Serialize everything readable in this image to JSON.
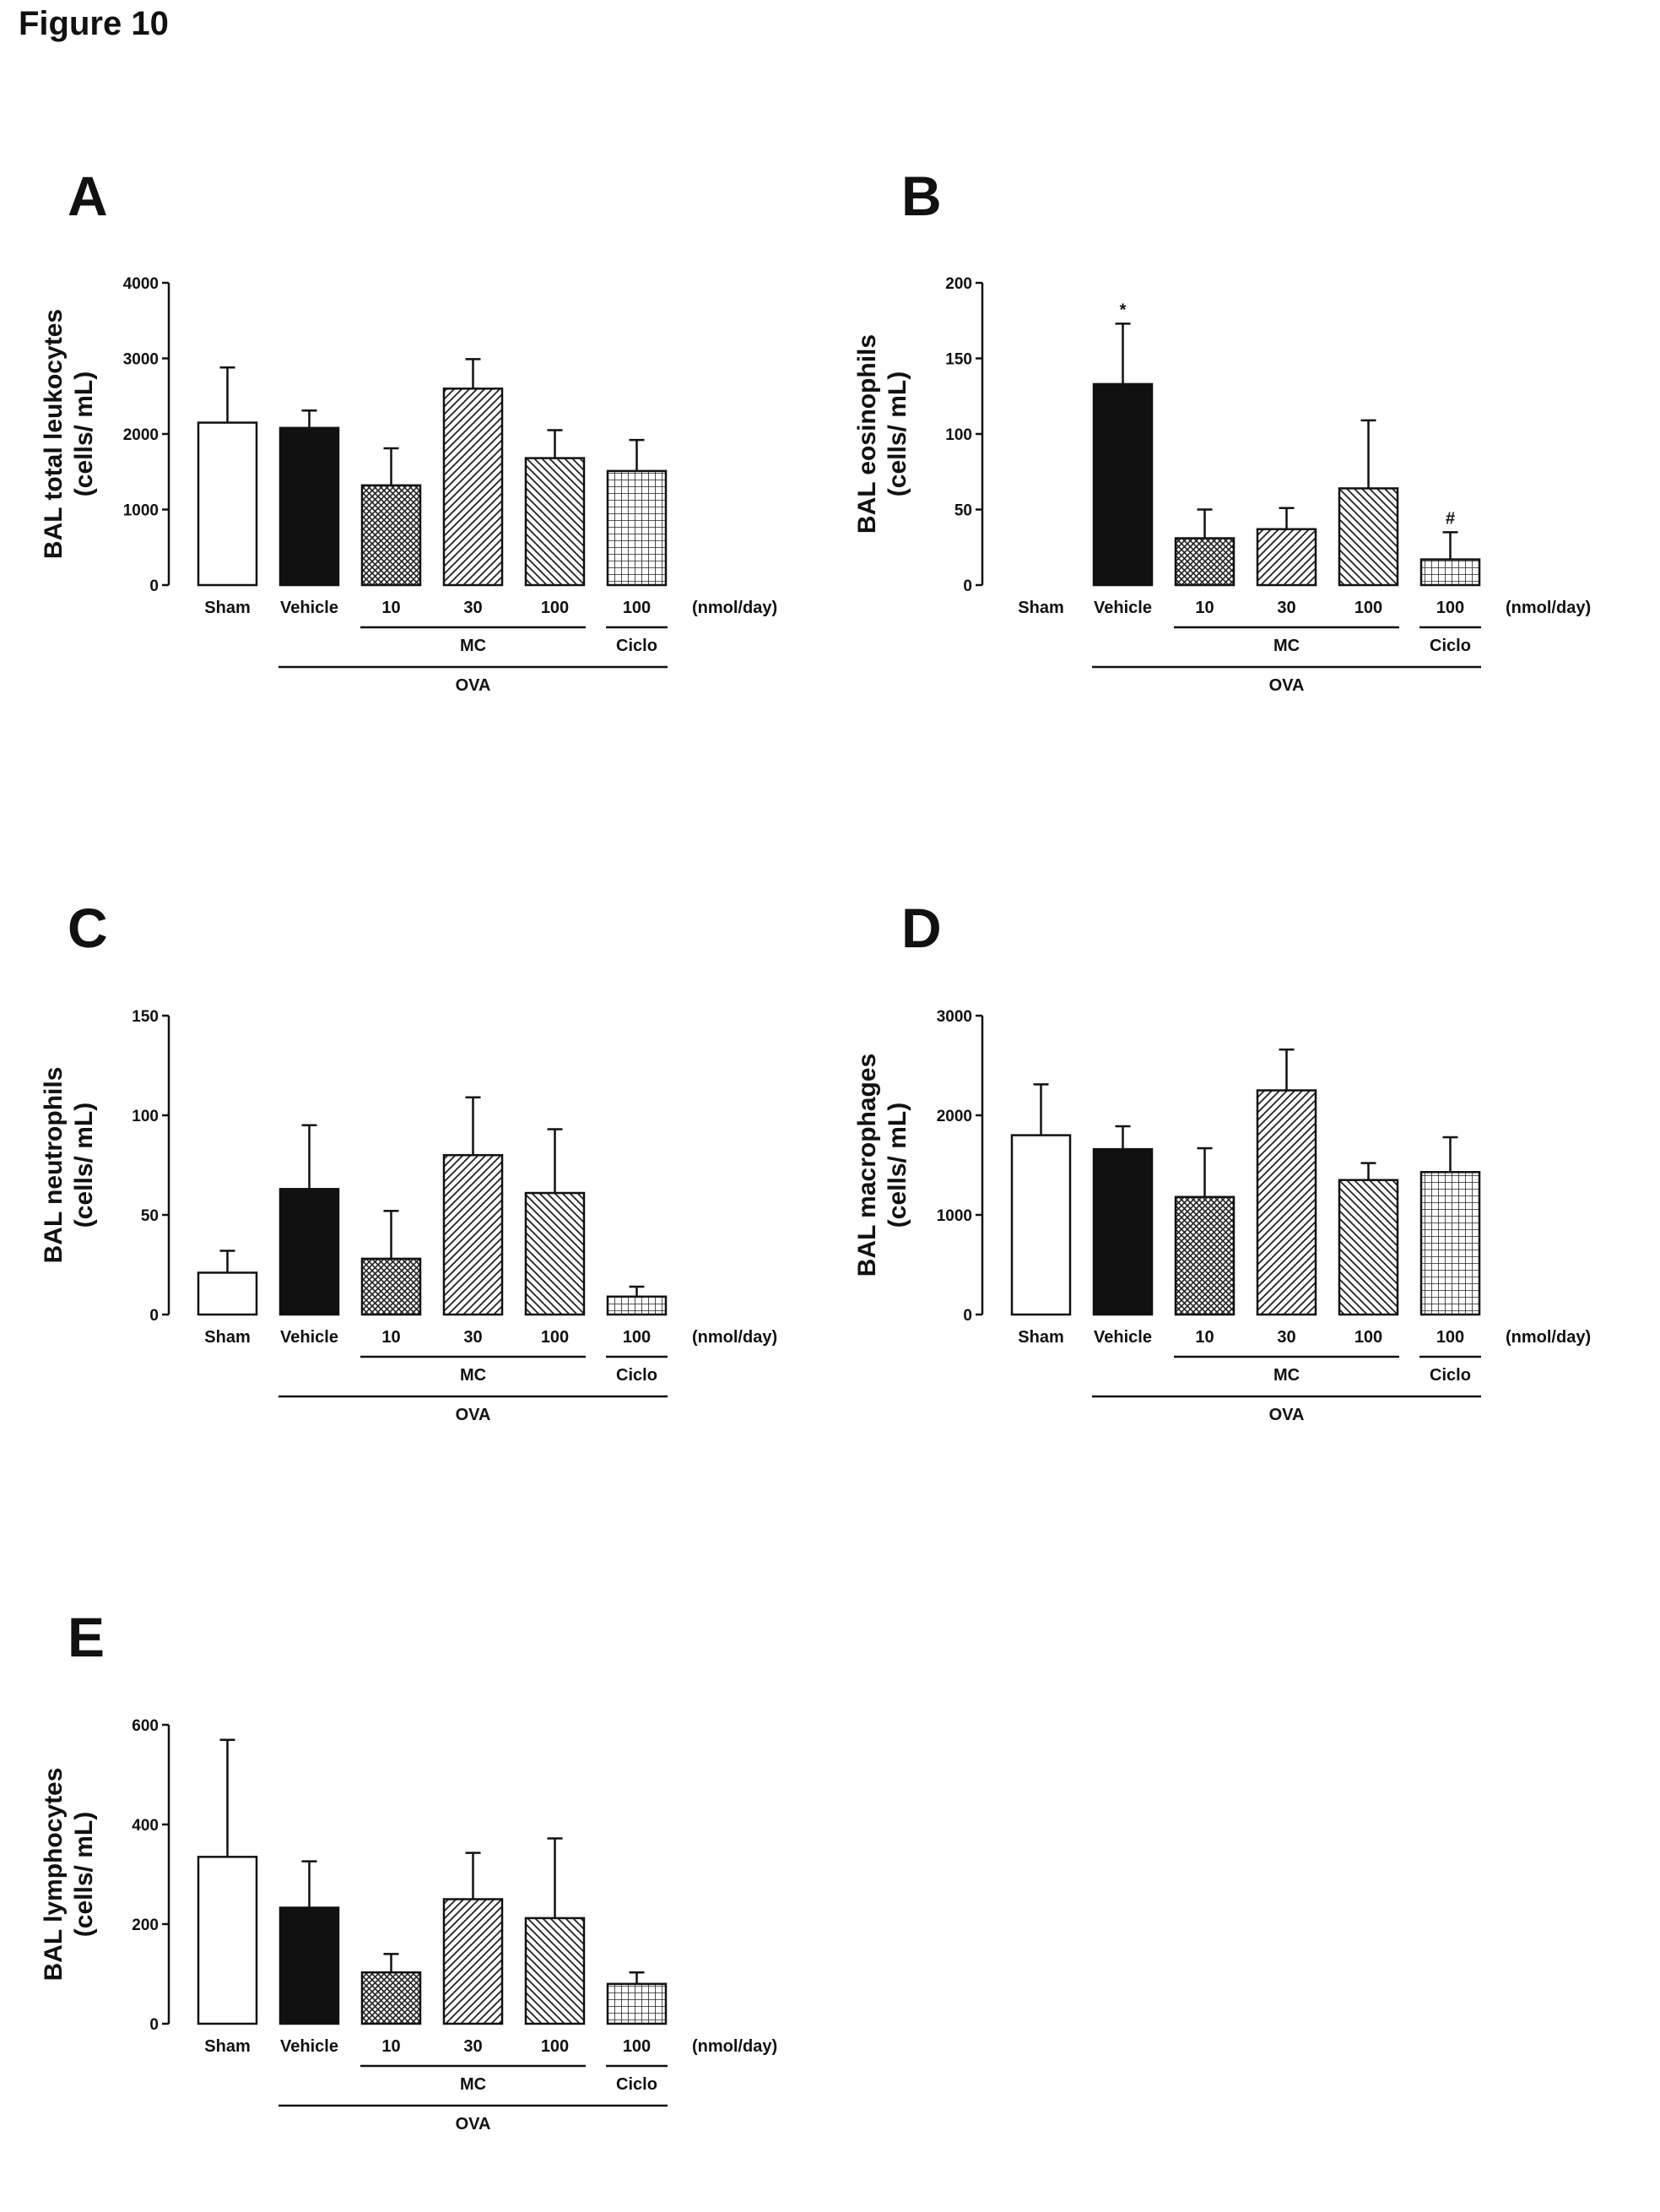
{
  "figure_title": "Figure 10",
  "chart_data": [
    {
      "panel": "A",
      "type": "bar",
      "ylabel": "BAL total leukocytes",
      "ylabel_units": "(cells/ mL)",
      "ylim": [
        0,
        4000
      ],
      "yticks": [
        0,
        1000,
        2000,
        3000,
        4000
      ],
      "categories": [
        "Sham",
        "Vehicle",
        "10",
        "30",
        "100",
        "100"
      ],
      "values": [
        2150,
        2080,
        1320,
        2600,
        1680,
        1510
      ],
      "errors": [
        730,
        230,
        490,
        390,
        370,
        410
      ],
      "annotations": [
        "",
        "",
        "",
        "",
        "",
        ""
      ],
      "dose_unit": "(nmol/day)",
      "groups": {
        "mc": "MC",
        "ciclo": "Ciclo",
        "ova": "OVA"
      }
    },
    {
      "panel": "B",
      "type": "bar",
      "ylabel": "BAL eosinophils",
      "ylabel_units": "(cells/ mL)",
      "ylim": [
        0,
        200
      ],
      "yticks": [
        0,
        50,
        100,
        150,
        200
      ],
      "categories": [
        "Sham",
        "Vehicle",
        "10",
        "30",
        "100",
        "100"
      ],
      "values": [
        0,
        133,
        31,
        37,
        64,
        17
      ],
      "errors": [
        0,
        40,
        19,
        14,
        45,
        18
      ],
      "annotations": [
        "",
        "*",
        "",
        "",
        "",
        "#"
      ],
      "dose_unit": "(nmol/day)",
      "groups": {
        "mc": "MC",
        "ciclo": "Ciclo",
        "ova": "OVA"
      }
    },
    {
      "panel": "C",
      "type": "bar",
      "ylabel": "BAL neutrophils",
      "ylabel_units": "(cells/ mL)",
      "ylim": [
        0,
        150
      ],
      "yticks": [
        0,
        50,
        100,
        150
      ],
      "categories": [
        "Sham",
        "Vehicle",
        "10",
        "30",
        "100",
        "100"
      ],
      "values": [
        21,
        63,
        28,
        80,
        61,
        9
      ],
      "errors": [
        11,
        32,
        24,
        29,
        32,
        5
      ],
      "annotations": [
        "",
        "",
        "",
        "",
        "",
        ""
      ],
      "dose_unit": "(nmol/day)",
      "groups": {
        "mc": "MC",
        "ciclo": "Ciclo",
        "ova": "OVA"
      }
    },
    {
      "panel": "D",
      "type": "bar",
      "ylabel": "BAL macrophages",
      "ylabel_units": "(cells/ mL)",
      "ylim": [
        0,
        3000
      ],
      "yticks": [
        0,
        1000,
        2000,
        3000
      ],
      "categories": [
        "Sham",
        "Vehicle",
        "10",
        "30",
        "100",
        "100"
      ],
      "values": [
        1800,
        1660,
        1180,
        2250,
        1350,
        1430
      ],
      "errors": [
        510,
        230,
        490,
        410,
        170,
        350
      ],
      "annotations": [
        "",
        "",
        "",
        "",
        "",
        ""
      ],
      "dose_unit": "(nmol/day)",
      "groups": {
        "mc": "MC",
        "ciclo": "Ciclo",
        "ova": "OVA"
      }
    },
    {
      "panel": "E",
      "type": "bar",
      "ylabel": "BAL lymphocytes",
      "ylabel_units": "(cells/ mL)",
      "ylim": [
        0,
        600
      ],
      "yticks": [
        0,
        200,
        400,
        600
      ],
      "categories": [
        "Sham",
        "Vehicle",
        "10",
        "30",
        "100",
        "100"
      ],
      "values": [
        335,
        233,
        103,
        250,
        212,
        80
      ],
      "errors": [
        235,
        93,
        37,
        93,
        160,
        23
      ],
      "annotations": [
        "",
        "",
        "",
        "",
        "",
        ""
      ],
      "dose_unit": "(nmol/day)",
      "groups": {
        "mc": "MC",
        "ciclo": "Ciclo",
        "ova": "OVA"
      }
    }
  ],
  "bar_styles": [
    {
      "fill": "#ffffff",
      "pattern": "none"
    },
    {
      "fill": "#111111",
      "pattern": "none"
    },
    {
      "fill": "#ffffff",
      "pattern": "crosshatch"
    },
    {
      "fill": "#ffffff",
      "pattern": "diagonal-up"
    },
    {
      "fill": "#ffffff",
      "pattern": "diagonal-down"
    },
    {
      "fill": "#ffffff",
      "pattern": "grid"
    }
  ]
}
